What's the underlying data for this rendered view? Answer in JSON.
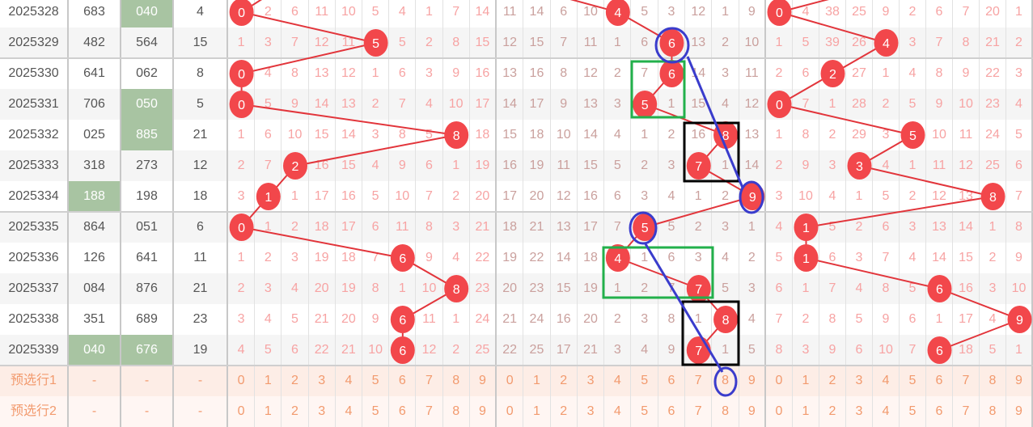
{
  "colors": {
    "ball": "#f2474b",
    "line": "#e2353b",
    "highlight": "#a8c4a2",
    "annot_blue": "#3a3ccc",
    "annot_green": "#22b04b",
    "annot_black": "#000000"
  },
  "rows": [
    {
      "issue": "2025328",
      "n1": "683",
      "n2": "040",
      "n3": "4",
      "hl": [
        false,
        true
      ],
      "g1": [
        "0",
        "2",
        "6",
        "11",
        "10",
        "5",
        "4",
        "1",
        "7",
        "14"
      ],
      "b1": 0,
      "g2": [
        "11",
        "14",
        "6",
        "10",
        "4",
        "5",
        "3",
        "12",
        "1",
        "9"
      ],
      "b2": 4,
      "g3": [
        "0",
        "4",
        "38",
        "25",
        "9",
        "2",
        "6",
        "7",
        "20",
        "1"
      ],
      "b3": 0
    },
    {
      "issue": "2025329",
      "n1": "482",
      "n2": "564",
      "n3": "15",
      "hl": [
        false,
        false
      ],
      "g1": [
        "1",
        "3",
        "7",
        "12",
        "11",
        "5",
        "5",
        "2",
        "8",
        "15"
      ],
      "b1": 5,
      "g2": [
        "12",
        "15",
        "7",
        "11",
        "1",
        "6",
        "6",
        "13",
        "2",
        "10"
      ],
      "b2": 6,
      "g3": [
        "1",
        "5",
        "39",
        "26",
        "4",
        "3",
        "7",
        "8",
        "21",
        "2"
      ],
      "b3": 4
    },
    {
      "issue": "2025330",
      "n1": "641",
      "n2": "062",
      "n3": "8",
      "hl": [
        false,
        false
      ],
      "g1": [
        "0",
        "4",
        "8",
        "13",
        "12",
        "1",
        "6",
        "3",
        "9",
        "16"
      ],
      "b1": 0,
      "g2": [
        "13",
        "16",
        "8",
        "12",
        "2",
        "7",
        "6",
        "14",
        "3",
        "11"
      ],
      "b2": 6,
      "g3": [
        "2",
        "6",
        "2",
        "27",
        "1",
        "4",
        "8",
        "9",
        "22",
        "3"
      ],
      "b3": 2
    },
    {
      "issue": "2025331",
      "n1": "706",
      "n2": "050",
      "n3": "5",
      "hl": [
        false,
        true
      ],
      "g1": [
        "0",
        "5",
        "9",
        "14",
        "13",
        "2",
        "7",
        "4",
        "10",
        "17"
      ],
      "b1": 0,
      "g2": [
        "14",
        "17",
        "9",
        "13",
        "3",
        "5",
        "1",
        "15",
        "4",
        "12"
      ],
      "b2": 5,
      "g3": [
        "0",
        "7",
        "1",
        "28",
        "2",
        "5",
        "9",
        "10",
        "23",
        "4"
      ],
      "b3": 0
    },
    {
      "issue": "2025332",
      "n1": "025",
      "n2": "885",
      "n3": "21",
      "hl": [
        false,
        true
      ],
      "g1": [
        "1",
        "6",
        "10",
        "15",
        "14",
        "3",
        "8",
        "5",
        "8",
        "18"
      ],
      "b1": 8,
      "g2": [
        "15",
        "18",
        "10",
        "14",
        "4",
        "1",
        "2",
        "16",
        "8",
        "13"
      ],
      "b2": 8,
      "g3": [
        "1",
        "8",
        "2",
        "29",
        "3",
        "5",
        "10",
        "11",
        "24",
        "5"
      ],
      "b3": 5
    },
    {
      "issue": "2025333",
      "n1": "318",
      "n2": "273",
      "n3": "12",
      "hl": [
        false,
        false
      ],
      "g1": [
        "2",
        "7",
        "2",
        "16",
        "15",
        "4",
        "9",
        "6",
        "1",
        "19"
      ],
      "b1": 2,
      "g2": [
        "16",
        "19",
        "11",
        "15",
        "5",
        "2",
        "3",
        "7",
        "1",
        "14"
      ],
      "b2": 7,
      "g3": [
        "2",
        "9",
        "3",
        "3",
        "4",
        "1",
        "11",
        "12",
        "25",
        "6"
      ],
      "b3": 3
    },
    {
      "issue": "2025334",
      "n1": "188",
      "n2": "198",
      "n3": "18",
      "hl": [
        true,
        false
      ],
      "g1": [
        "3",
        "1",
        "1",
        "17",
        "16",
        "5",
        "10",
        "7",
        "2",
        "20"
      ],
      "b1": 1,
      "g2": [
        "17",
        "20",
        "12",
        "16",
        "6",
        "3",
        "4",
        "1",
        "2",
        "9"
      ],
      "b2": 9,
      "g3": [
        "3",
        "10",
        "4",
        "1",
        "5",
        "2",
        "12",
        "13",
        "8",
        "7"
      ],
      "b3": 8
    },
    {
      "issue": "2025335",
      "n1": "864",
      "n2": "051",
      "n3": "6",
      "hl": [
        false,
        false
      ],
      "g1": [
        "0",
        "1",
        "2",
        "18",
        "17",
        "6",
        "11",
        "8",
        "3",
        "21"
      ],
      "b1": 0,
      "g2": [
        "18",
        "21",
        "13",
        "17",
        "7",
        "5",
        "5",
        "2",
        "3",
        "1"
      ],
      "b2": 5,
      "g3": [
        "4",
        "1",
        "5",
        "2",
        "6",
        "3",
        "13",
        "14",
        "1",
        "8"
      ],
      "b3": 1
    },
    {
      "issue": "2025336",
      "n1": "126",
      "n2": "641",
      "n3": "11",
      "hl": [
        false,
        false
      ],
      "g1": [
        "1",
        "2",
        "3",
        "19",
        "18",
        "7",
        "6",
        "9",
        "4",
        "22"
      ],
      "b1": 6,
      "g2": [
        "19",
        "22",
        "14",
        "18",
        "4",
        "1",
        "6",
        "3",
        "4",
        "2"
      ],
      "b2": 4,
      "g3": [
        "5",
        "1",
        "6",
        "3",
        "7",
        "4",
        "14",
        "15",
        "2",
        "9"
      ],
      "b3": 1
    },
    {
      "issue": "2025337",
      "n1": "084",
      "n2": "876",
      "n3": "21",
      "hl": [
        false,
        false
      ],
      "g1": [
        "2",
        "3",
        "4",
        "20",
        "19",
        "8",
        "1",
        "10",
        "8",
        "23"
      ],
      "b1": 8,
      "g2": [
        "20",
        "23",
        "15",
        "19",
        "1",
        "2",
        "7",
        "7",
        "5",
        "3"
      ],
      "b2": 7,
      "g3": [
        "6",
        "1",
        "7",
        "4",
        "8",
        "5",
        "6",
        "16",
        "3",
        "10"
      ],
      "b3": 6
    },
    {
      "issue": "2025338",
      "n1": "351",
      "n2": "689",
      "n3": "23",
      "hl": [
        false,
        false
      ],
      "g1": [
        "3",
        "4",
        "5",
        "21",
        "20",
        "9",
        "6",
        "11",
        "1",
        "24"
      ],
      "b1": 6,
      "g2": [
        "21",
        "24",
        "16",
        "20",
        "2",
        "3",
        "8",
        "1",
        "8",
        "4"
      ],
      "b2": 8,
      "g3": [
        "7",
        "2",
        "8",
        "5",
        "9",
        "6",
        "1",
        "17",
        "4",
        "9"
      ],
      "b3": 9
    },
    {
      "issue": "2025339",
      "n1": "040",
      "n2": "676",
      "n3": "19",
      "hl": [
        true,
        true
      ],
      "g1": [
        "4",
        "5",
        "6",
        "22",
        "21",
        "10",
        "6",
        "12",
        "2",
        "25"
      ],
      "b1": 6,
      "g2": [
        "22",
        "25",
        "17",
        "21",
        "3",
        "4",
        "9",
        "7",
        "1",
        "5"
      ],
      "b2": 7,
      "g3": [
        "8",
        "3",
        "9",
        "6",
        "10",
        "7",
        "6",
        "18",
        "5",
        "1"
      ],
      "b3": 6
    }
  ],
  "preselect": [
    {
      "label": "预选行1",
      "dash": "-",
      "digits": [
        "0",
        "1",
        "2",
        "3",
        "4",
        "5",
        "6",
        "7",
        "8",
        "9"
      ]
    },
    {
      "label": "预选行2",
      "dash": "-",
      "digits": [
        "0",
        "1",
        "2",
        "3",
        "4",
        "5",
        "6",
        "7",
        "8",
        "9"
      ]
    }
  ]
}
